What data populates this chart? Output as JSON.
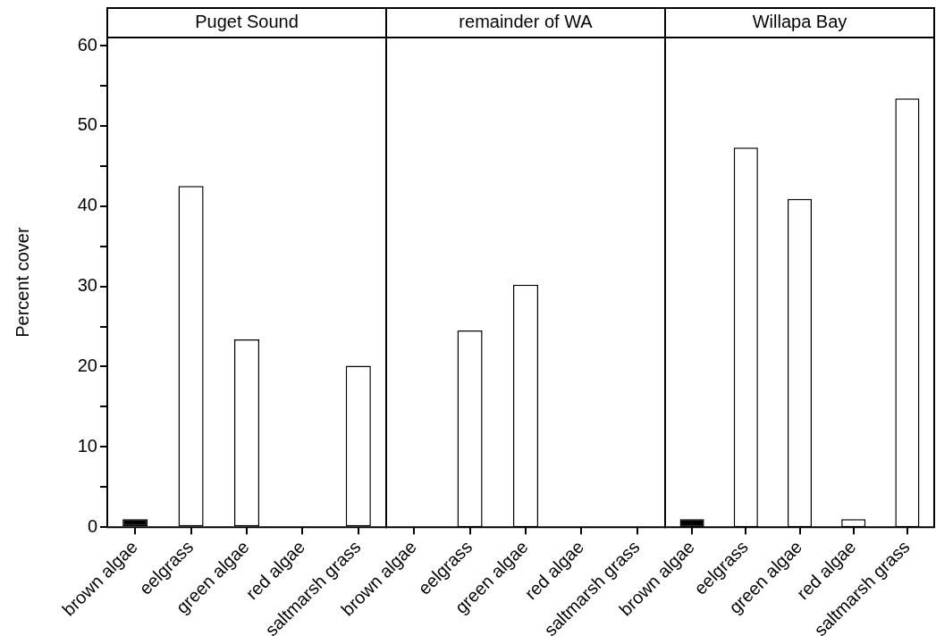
{
  "chart_data": [
    {
      "type": "bar",
      "title": "Puget Sound",
      "ylabel": "Percent cover",
      "categories": [
        "brown algae",
        "eelgrass",
        "green algae",
        "red algae",
        "saltmarsh grass"
      ],
      "values": [
        1.0,
        42.5,
        23.4,
        0,
        20.1
      ],
      "colors": [
        "#000000",
        "#ffffff",
        "#ffffff",
        "#ffffff",
        "#ffffff"
      ],
      "ylim": [
        0,
        61
      ],
      "yticks": [
        0,
        {
          "value": 5,
          "label": null
        },
        10,
        {
          "value": 15,
          "label": null
        },
        20,
        {
          "value": 25,
          "label": null
        },
        30,
        {
          "value": 35,
          "label": null
        },
        40,
        {
          "value": 45,
          "label": null
        },
        50,
        {
          "value": 55,
          "label": null
        },
        60
      ]
    },
    {
      "type": "bar",
      "title": "remainder of WA",
      "categories": [
        "brown algae",
        "eelgrass",
        "green algae",
        "red algae",
        "saltmarsh grass"
      ],
      "values": [
        0,
        24.5,
        30.2,
        0,
        0
      ],
      "colors": [
        "#000000",
        "#ffffff",
        "#ffffff",
        "#ffffff",
        "#ffffff"
      ],
      "ylim": [
        0,
        61
      ],
      "tick_labels": "x"
    },
    {
      "type": "bar",
      "title": "Willapa Bay",
      "categories": [
        "brown algae",
        "eelgrass",
        "green algae",
        "red algae",
        "saltmarsh grass"
      ],
      "values": [
        1.0,
        47.3,
        40.9,
        1.0,
        53.4
      ],
      "colors": [
        "#000000",
        "#ffffff",
        "#ffffff",
        "#ffffff",
        "#ffffff"
      ],
      "ylim": [
        0,
        61
      ],
      "tick_labels": "x"
    }
  ]
}
